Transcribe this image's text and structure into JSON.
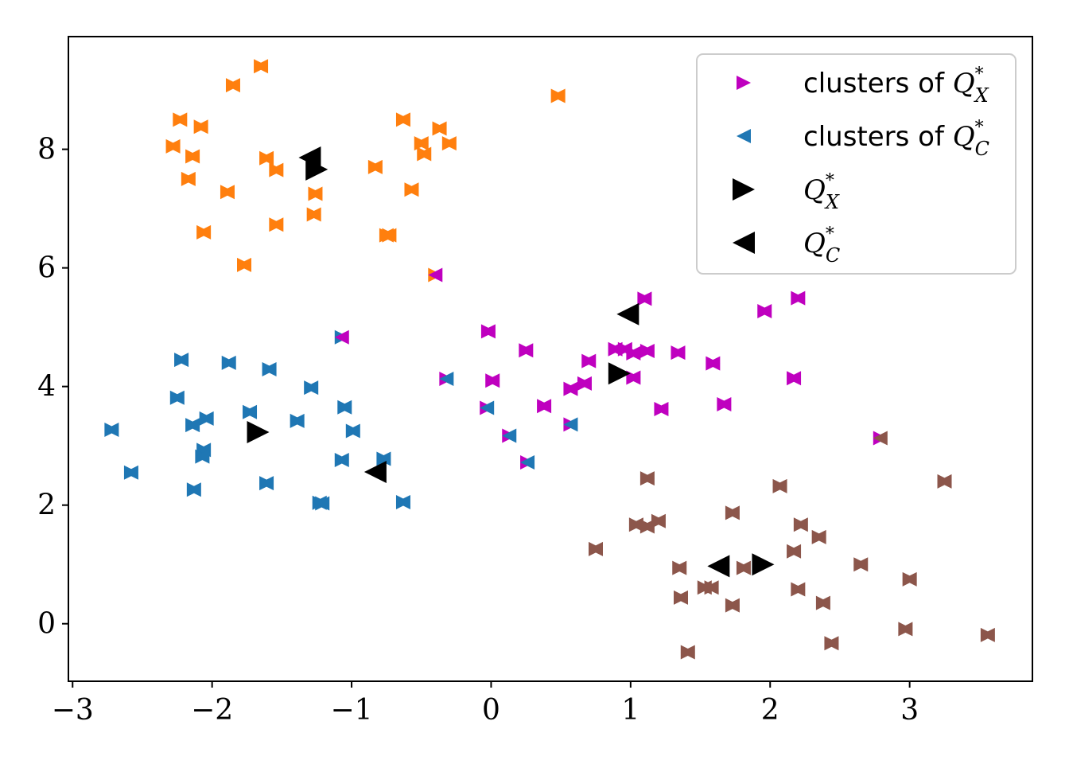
{
  "chart_data": {
    "type": "scatter",
    "xlim": [
      -3.03,
      3.88
    ],
    "ylim": [
      -0.97,
      9.9
    ],
    "xticks": [
      -3,
      -2,
      -1,
      0,
      1,
      2,
      3
    ],
    "xtick_labels": [
      "−3",
      "−2",
      "−1",
      "0",
      "1",
      "2",
      "3"
    ],
    "yticks": [
      0,
      2,
      4,
      6,
      8
    ],
    "ytick_labels": [
      "0",
      "2",
      "4",
      "6",
      "8"
    ],
    "grid": false,
    "legend_position": "top-right",
    "colors": {
      "orange": "#ff7f0e",
      "blue": "#1f77b4",
      "magenta": "#bf00bf",
      "brown": "#8c564b",
      "black": "#000000"
    },
    "points": [
      {
        "x": -1.65,
        "y": 9.4,
        "color": "orange",
        "cx": "orange"
      },
      {
        "x": -1.85,
        "y": 9.08,
        "color": "orange",
        "cx": "orange"
      },
      {
        "x": 0.48,
        "y": 8.9,
        "color": "orange",
        "cx": "orange"
      },
      {
        "x": -2.23,
        "y": 8.5,
        "color": "orange",
        "cx": "orange"
      },
      {
        "x": -0.63,
        "y": 8.5,
        "color": "orange",
        "cx": "orange"
      },
      {
        "x": -2.08,
        "y": 8.38,
        "color": "orange",
        "cx": "orange"
      },
      {
        "x": -0.37,
        "y": 8.35,
        "color": "orange",
        "cx": "orange"
      },
      {
        "x": -0.3,
        "y": 8.1,
        "color": "orange",
        "cx": "orange"
      },
      {
        "x": -0.5,
        "y": 8.1,
        "color": "orange",
        "cx": "orange"
      },
      {
        "x": -2.28,
        "y": 8.05,
        "color": "orange",
        "cx": "orange"
      },
      {
        "x": -0.48,
        "y": 7.92,
        "color": "orange",
        "cx": "orange"
      },
      {
        "x": -2.14,
        "y": 7.88,
        "color": "orange",
        "cx": "orange"
      },
      {
        "x": -1.61,
        "y": 7.85,
        "color": "orange",
        "cx": "orange"
      },
      {
        "x": -0.83,
        "y": 7.7,
        "color": "orange",
        "cx": "orange"
      },
      {
        "x": -1.54,
        "y": 7.65,
        "color": "orange",
        "cx": "orange"
      },
      {
        "x": -2.17,
        "y": 7.5,
        "color": "orange",
        "cx": "orange"
      },
      {
        "x": -0.57,
        "y": 7.32,
        "color": "orange",
        "cx": "orange"
      },
      {
        "x": -1.89,
        "y": 7.28,
        "color": "orange",
        "cx": "orange"
      },
      {
        "x": -1.26,
        "y": 7.25,
        "color": "orange",
        "cx": "orange"
      },
      {
        "x": -1.27,
        "y": 6.9,
        "color": "orange",
        "cx": "orange"
      },
      {
        "x": -1.54,
        "y": 6.73,
        "color": "orange",
        "cx": "orange"
      },
      {
        "x": -2.06,
        "y": 6.6,
        "color": "orange",
        "cx": "orange"
      },
      {
        "x": -0.73,
        "y": 6.55,
        "color": "orange",
        "cx": "orange"
      },
      {
        "x": -0.75,
        "y": 6.55,
        "color": "orange",
        "cx": "orange"
      },
      {
        "x": -1.77,
        "y": 6.05,
        "color": "orange",
        "cx": "orange"
      },
      {
        "x": -0.4,
        "y": 5.88,
        "color": "orange",
        "cx": "magenta"
      },
      {
        "x": 1.1,
        "y": 5.48,
        "color": "magenta",
        "cx": "magenta"
      },
      {
        "x": 2.2,
        "y": 5.49,
        "color": "magenta",
        "cx": "magenta"
      },
      {
        "x": 1.96,
        "y": 5.27,
        "color": "magenta",
        "cx": "magenta"
      },
      {
        "x": -0.02,
        "y": 4.93,
        "color": "magenta",
        "cx": "magenta"
      },
      {
        "x": -1.07,
        "y": 4.83,
        "color": "blue",
        "cx": "magenta"
      },
      {
        "x": 0.89,
        "y": 4.63,
        "color": "magenta",
        "cx": "magenta"
      },
      {
        "x": 0.96,
        "y": 4.63,
        "color": "magenta",
        "cx": "magenta"
      },
      {
        "x": 1.12,
        "y": 4.6,
        "color": "magenta",
        "cx": "magenta"
      },
      {
        "x": 0.25,
        "y": 4.61,
        "color": "magenta",
        "cx": "magenta"
      },
      {
        "x": 1.34,
        "y": 4.57,
        "color": "magenta",
        "cx": "magenta"
      },
      {
        "x": 1.02,
        "y": 4.56,
        "color": "magenta",
        "cx": "magenta"
      },
      {
        "x": -2.22,
        "y": 4.45,
        "color": "blue",
        "cx": "blue"
      },
      {
        "x": 0.7,
        "y": 4.43,
        "color": "magenta",
        "cx": "magenta"
      },
      {
        "x": -1.88,
        "y": 4.4,
        "color": "blue",
        "cx": "blue"
      },
      {
        "x": 1.59,
        "y": 4.39,
        "color": "magenta",
        "cx": "magenta"
      },
      {
        "x": -1.59,
        "y": 4.29,
        "color": "blue",
        "cx": "blue"
      },
      {
        "x": 1.02,
        "y": 4.15,
        "color": "magenta",
        "cx": "magenta"
      },
      {
        "x": 2.17,
        "y": 4.14,
        "color": "magenta",
        "cx": "magenta"
      },
      {
        "x": -0.32,
        "y": 4.13,
        "color": "magenta",
        "cx": "blue"
      },
      {
        "x": 0.01,
        "y": 4.1,
        "color": "magenta",
        "cx": "magenta"
      },
      {
        "x": 0.67,
        "y": 4.05,
        "color": "magenta",
        "cx": "magenta"
      },
      {
        "x": -1.29,
        "y": 3.98,
        "color": "blue",
        "cx": "blue"
      },
      {
        "x": 0.57,
        "y": 3.96,
        "color": "magenta",
        "cx": "magenta"
      },
      {
        "x": -2.25,
        "y": 3.81,
        "color": "blue",
        "cx": "blue"
      },
      {
        "x": 1.67,
        "y": 3.7,
        "color": "magenta",
        "cx": "magenta"
      },
      {
        "x": 0.38,
        "y": 3.67,
        "color": "magenta",
        "cx": "magenta"
      },
      {
        "x": -1.05,
        "y": 3.65,
        "color": "blue",
        "cx": "blue"
      },
      {
        "x": -0.03,
        "y": 3.64,
        "color": "magenta",
        "cx": "blue"
      },
      {
        "x": 1.22,
        "y": 3.62,
        "color": "magenta",
        "cx": "magenta"
      },
      {
        "x": -1.73,
        "y": 3.57,
        "color": "blue",
        "cx": "blue"
      },
      {
        "x": -2.04,
        "y": 3.46,
        "color": "blue",
        "cx": "blue"
      },
      {
        "x": -1.39,
        "y": 3.42,
        "color": "blue",
        "cx": "blue"
      },
      {
        "x": 0.57,
        "y": 3.36,
        "color": "magenta",
        "cx": "blue"
      },
      {
        "x": -2.14,
        "y": 3.35,
        "color": "blue",
        "cx": "blue"
      },
      {
        "x": -2.72,
        "y": 3.27,
        "color": "blue",
        "cx": "blue"
      },
      {
        "x": -0.99,
        "y": 3.25,
        "color": "blue",
        "cx": "blue"
      },
      {
        "x": 0.13,
        "y": 3.17,
        "color": "magenta",
        "cx": "blue"
      },
      {
        "x": 2.79,
        "y": 3.13,
        "color": "magenta",
        "cx": "brown"
      },
      {
        "x": -2.06,
        "y": 2.93,
        "color": "blue",
        "cx": "blue"
      },
      {
        "x": -2.07,
        "y": 2.82,
        "color": "blue",
        "cx": "blue"
      },
      {
        "x": -0.77,
        "y": 2.78,
        "color": "blue",
        "cx": "blue"
      },
      {
        "x": -1.07,
        "y": 2.76,
        "color": "blue",
        "cx": "blue"
      },
      {
        "x": 0.26,
        "y": 2.72,
        "color": "magenta",
        "cx": "blue"
      },
      {
        "x": -2.58,
        "y": 2.55,
        "color": "blue",
        "cx": "blue"
      },
      {
        "x": 1.12,
        "y": 2.45,
        "color": "brown",
        "cx": "brown"
      },
      {
        "x": 3.25,
        "y": 2.4,
        "color": "brown",
        "cx": "brown"
      },
      {
        "x": -1.61,
        "y": 2.37,
        "color": "blue",
        "cx": "blue"
      },
      {
        "x": 2.07,
        "y": 2.32,
        "color": "brown",
        "cx": "brown"
      },
      {
        "x": -2.13,
        "y": 2.26,
        "color": "blue",
        "cx": "blue"
      },
      {
        "x": -1.23,
        "y": 2.04,
        "color": "blue",
        "cx": "blue"
      },
      {
        "x": -1.21,
        "y": 2.03,
        "color": "blue",
        "cx": "blue"
      },
      {
        "x": -0.63,
        "y": 2.05,
        "color": "blue",
        "cx": "blue"
      },
      {
        "x": 1.73,
        "y": 1.87,
        "color": "brown",
        "cx": "brown"
      },
      {
        "x": 1.2,
        "y": 1.73,
        "color": "brown",
        "cx": "brown"
      },
      {
        "x": 1.04,
        "y": 1.67,
        "color": "brown",
        "cx": "brown"
      },
      {
        "x": 2.22,
        "y": 1.67,
        "color": "brown",
        "cx": "brown"
      },
      {
        "x": 1.12,
        "y": 1.64,
        "color": "brown",
        "cx": "brown"
      },
      {
        "x": 2.35,
        "y": 1.46,
        "color": "brown",
        "cx": "brown"
      },
      {
        "x": 0.75,
        "y": 1.26,
        "color": "brown",
        "cx": "brown"
      },
      {
        "x": 2.17,
        "y": 1.22,
        "color": "brown",
        "cx": "brown"
      },
      {
        "x": 2.65,
        "y": 1.0,
        "color": "brown",
        "cx": "brown"
      },
      {
        "x": 1.35,
        "y": 0.94,
        "color": "brown",
        "cx": "brown"
      },
      {
        "x": 1.81,
        "y": 0.94,
        "color": "brown",
        "cx": "brown"
      },
      {
        "x": 3.0,
        "y": 0.75,
        "color": "brown",
        "cx": "brown"
      },
      {
        "x": 1.53,
        "y": 0.61,
        "color": "brown",
        "cx": "brown"
      },
      {
        "x": 1.58,
        "y": 0.61,
        "color": "brown",
        "cx": "brown"
      },
      {
        "x": 2.2,
        "y": 0.58,
        "color": "brown",
        "cx": "brown"
      },
      {
        "x": 1.36,
        "y": 0.44,
        "color": "brown",
        "cx": "brown"
      },
      {
        "x": 2.38,
        "y": 0.35,
        "color": "brown",
        "cx": "brown"
      },
      {
        "x": 1.73,
        "y": 0.31,
        "color": "brown",
        "cx": "brown"
      },
      {
        "x": 2.97,
        "y": -0.09,
        "color": "brown",
        "cx": "brown"
      },
      {
        "x": 3.56,
        "y": -0.19,
        "color": "brown",
        "cx": "brown"
      },
      {
        "x": 2.44,
        "y": -0.33,
        "color": "brown",
        "cx": "brown"
      },
      {
        "x": 1.41,
        "y": -0.48,
        "color": "brown",
        "cx": "brown"
      }
    ],
    "centroids_x": [
      {
        "x": -1.25,
        "y": 7.66
      },
      {
        "x": -1.67,
        "y": 3.23
      },
      {
        "x": 0.92,
        "y": 4.22
      },
      {
        "x": 1.95,
        "y": 1.0
      }
    ],
    "centroids_c": [
      {
        "x": -1.3,
        "y": 7.86
      },
      {
        "x": -0.83,
        "y": 2.56
      },
      {
        "x": 0.98,
        "y": 5.22
      },
      {
        "x": 1.63,
        "y": 0.97
      }
    ],
    "legend": [
      {
        "text": "clusters of ",
        "math": "Q",
        "sup": "*",
        "sub": "X",
        "marker": "right",
        "color": "magenta",
        "size": "small"
      },
      {
        "text": "clusters of ",
        "math": "Q",
        "sup": "*",
        "sub": "C",
        "marker": "left",
        "color": "blue",
        "size": "small"
      },
      {
        "text": "",
        "math": "Q",
        "sup": "*",
        "sub": "X",
        "marker": "right",
        "color": "black",
        "size": "large"
      },
      {
        "text": "",
        "math": "Q",
        "sup": "*",
        "sub": "C",
        "marker": "left",
        "color": "black",
        "size": "large"
      }
    ]
  }
}
